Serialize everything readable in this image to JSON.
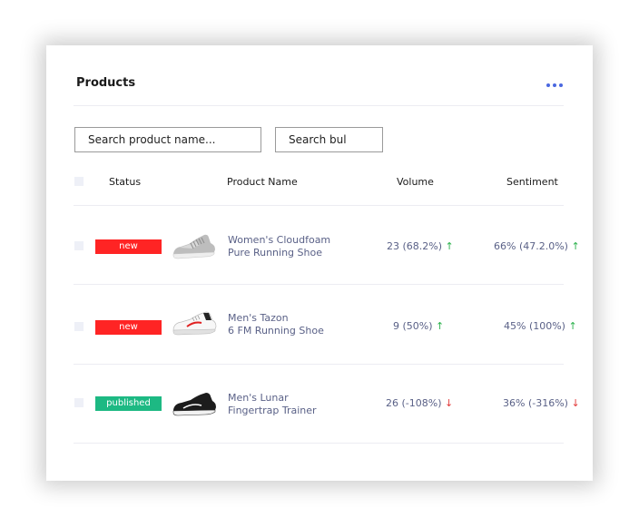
{
  "card": {
    "title": "Products"
  },
  "search": {
    "product_placeholder": "Search product name...",
    "bulk_placeholder": "Search bul"
  },
  "table": {
    "headers": {
      "status": "Status",
      "product_name": "Product Name",
      "volume": "Volume",
      "sentiment": "Sentiment"
    },
    "rows": [
      {
        "status": "new",
        "status_color": "#ff2424",
        "product_line1": "Women's Cloudfoam",
        "product_line2": "Pure Running Shoe",
        "thumbnail": "grey-running-shoe",
        "volume": "23 (68.2%)",
        "volume_trend": "↑",
        "sentiment": "66% (47.2.0%)",
        "sentiment_trend": "↑"
      },
      {
        "status": "new",
        "status_color": "#ff2424",
        "product_line1": "Men's Tazon",
        "product_line2": "6 FM Running Shoe",
        "thumbnail": "white-red-running-shoe",
        "volume": "9 (50%)",
        "volume_trend": "↑",
        "sentiment": "45% (100%)",
        "sentiment_trend": "↑"
      },
      {
        "status": "published",
        "status_color": "#1db983",
        "product_line1": "Men's Lunar",
        "product_line2": "Fingertrap Trainer",
        "thumbnail": "black-trainer-shoe",
        "volume": "26 (-108%)",
        "volume_trend": "↓",
        "sentiment": "36% (-316%)",
        "sentiment_trend": "↓"
      }
    ]
  },
  "colors": {
    "accent": "#4a68e0",
    "text_link": "#5a6187",
    "trend_up": "#2bb24c",
    "trend_down": "#e23b3b"
  }
}
